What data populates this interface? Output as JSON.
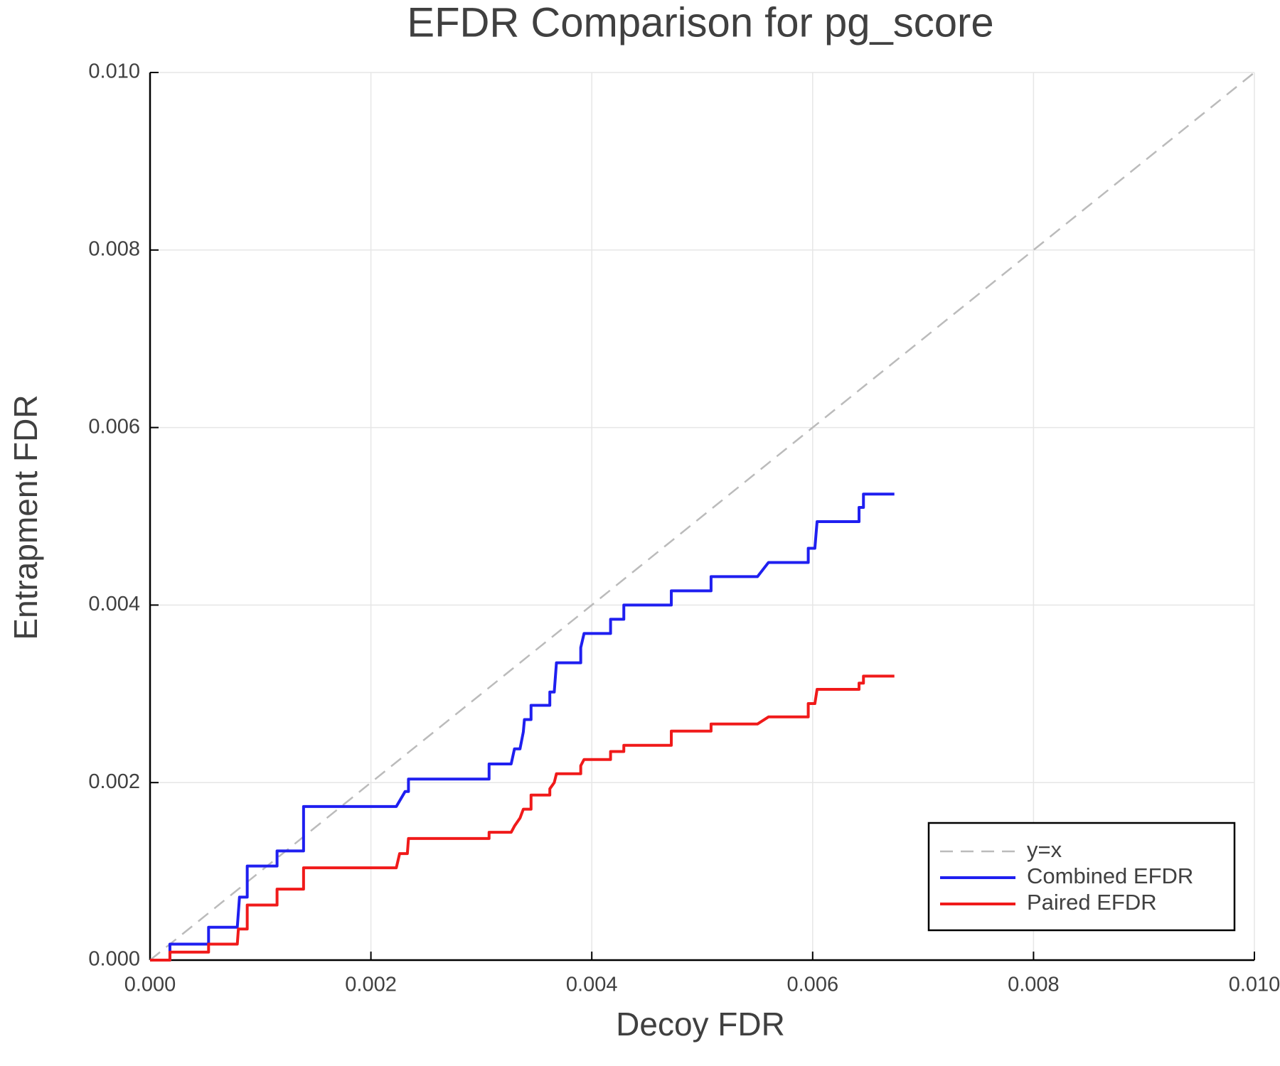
{
  "chart_data": {
    "type": "line",
    "title": "EFDR Comparison for pg_score",
    "x_label": "Decoy FDR",
    "y_label": "Entrapment FDR",
    "xlim": [
      0,
      0.01
    ],
    "ylim": [
      0,
      0.01
    ],
    "xticks": [
      {
        "value": 0,
        "label": "0.000"
      },
      {
        "value": 0.002,
        "label": "0.002"
      },
      {
        "value": 0.004,
        "label": "0.004"
      },
      {
        "value": 0.006,
        "label": "0.006"
      },
      {
        "value": 0.008,
        "label": "0.008"
      },
      {
        "value": 0.01,
        "label": "0.010"
      }
    ],
    "yticks": [
      {
        "value": 0,
        "label": "0.000"
      },
      {
        "value": 0.002,
        "label": "0.002"
      },
      {
        "value": 0.004,
        "label": "0.004"
      },
      {
        "value": 0.006,
        "label": "0.006"
      },
      {
        "value": 0.008,
        "label": "0.008"
      },
      {
        "value": 0.01,
        "label": "0.010"
      }
    ],
    "grid": true,
    "legend": "bottom-right",
    "series": [
      {
        "name": "y=x",
        "color": "#bbbbbb",
        "dashed": true,
        "x": [
          0,
          0.01
        ],
        "values": [
          0,
          0.01
        ]
      },
      {
        "name": "Combined EFDR",
        "color": "#1f1ff0",
        "dashed": false,
        "x": [
          0,
          0.00018,
          0.00018,
          0.00053,
          0.00053,
          0.00079,
          0.00081,
          0.00088,
          0.00088,
          0.00115,
          0.00115,
          0.00139,
          0.00139,
          0.00223,
          0.00231,
          0.00234,
          0.00234,
          0.00307,
          0.00307,
          0.00327,
          0.0033,
          0.00335,
          0.00338,
          0.00339,
          0.00345,
          0.00345,
          0.00362,
          0.00362,
          0.00366,
          0.00368,
          0.0039,
          0.0039,
          0.00393,
          0.00417,
          0.00417,
          0.00429,
          0.00429,
          0.00472,
          0.00472,
          0.00508,
          0.00508,
          0.0055,
          0.0056,
          0.00596,
          0.00596,
          0.00602,
          0.00604,
          0.00642,
          0.00642,
          0.00646,
          0.00646,
          0.00674
        ],
        "values": [
          0,
          0,
          0.00018,
          0.00018,
          0.00037,
          0.00037,
          0.00071,
          0.00071,
          0.00106,
          0.00106,
          0.00123,
          0.00123,
          0.00173,
          0.00173,
          0.0019,
          0.0019,
          0.00204,
          0.00204,
          0.00221,
          0.00221,
          0.00238,
          0.00238,
          0.00257,
          0.00271,
          0.00271,
          0.00287,
          0.00287,
          0.00302,
          0.00302,
          0.00335,
          0.00335,
          0.00352,
          0.00368,
          0.00368,
          0.00384,
          0.00384,
          0.004,
          0.004,
          0.00416,
          0.00416,
          0.00432,
          0.00432,
          0.00448,
          0.00448,
          0.00464,
          0.00464,
          0.00494,
          0.00494,
          0.0051,
          0.0051,
          0.00525,
          0.00525
        ]
      },
      {
        "name": "Paired EFDR",
        "color": "#f01a1a",
        "dashed": false,
        "x": [
          0,
          0.00018,
          0.00018,
          0.00053,
          0.00053,
          0.00079,
          0.0008,
          0.00088,
          0.00088,
          0.00115,
          0.00115,
          0.00139,
          0.00139,
          0.00223,
          0.00226,
          0.00233,
          0.00234,
          0.00307,
          0.00307,
          0.00327,
          0.0033,
          0.00335,
          0.00338,
          0.00345,
          0.00345,
          0.00362,
          0.00362,
          0.00366,
          0.00368,
          0.0039,
          0.0039,
          0.00393,
          0.00417,
          0.00417,
          0.00429,
          0.00429,
          0.00472,
          0.00472,
          0.00508,
          0.00508,
          0.0055,
          0.0056,
          0.00596,
          0.00596,
          0.00602,
          0.00604,
          0.00642,
          0.00642,
          0.00646,
          0.00646,
          0.00674
        ],
        "values": [
          0,
          0,
          9e-05,
          9e-05,
          0.00018,
          0.00018,
          0.00035,
          0.00035,
          0.00062,
          0.00062,
          0.0008,
          0.0008,
          0.00104,
          0.00104,
          0.0012,
          0.0012,
          0.00137,
          0.00137,
          0.00144,
          0.00144,
          0.00151,
          0.0016,
          0.0017,
          0.0017,
          0.00186,
          0.00186,
          0.00193,
          0.002,
          0.0021,
          0.0021,
          0.00219,
          0.00226,
          0.00226,
          0.00235,
          0.00235,
          0.00242,
          0.00242,
          0.00258,
          0.00258,
          0.00266,
          0.00266,
          0.00274,
          0.00274,
          0.00289,
          0.00289,
          0.00305,
          0.00305,
          0.00312,
          0.00312,
          0.0032,
          0.0032
        ]
      }
    ]
  }
}
